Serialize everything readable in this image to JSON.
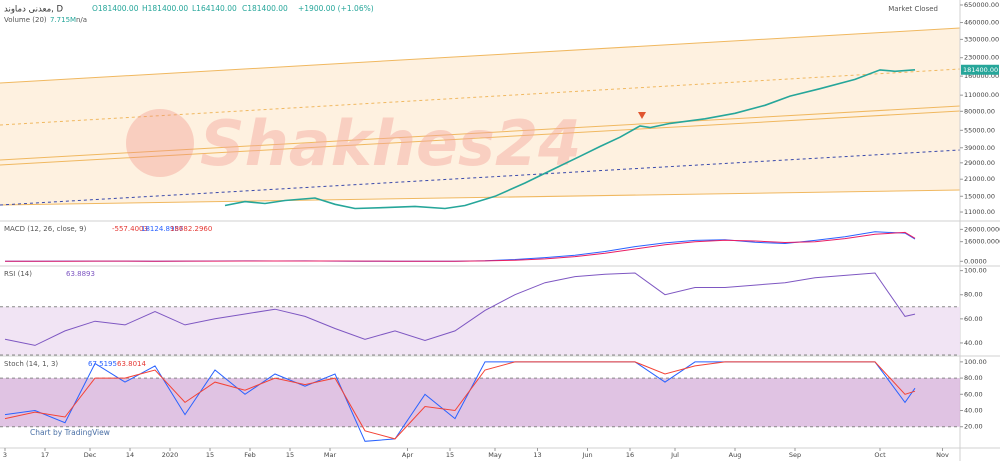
{
  "chart_data": [
    {
      "type": "line",
      "title": "معدنی دماوند, D",
      "legend_texts": [
        "O181400.00",
        "H181400.00",
        "L164140.00",
        "C181400.00",
        "+1900.00 (+1.06%)"
      ],
      "status": "Market Closed",
      "volume_title": "Volume (20)",
      "volume_texts": [
        "7.715M",
        "n/a"
      ],
      "watermark": "Shakhes24",
      "last_price": {
        "value": 181400,
        "label": "181400.00"
      },
      "log_scale": true,
      "ylim": [
        9400,
        717000
      ],
      "yticks": [
        {
          "value": 650000,
          "label": "650000.00"
        },
        {
          "value": 460000,
          "label": "460000.00"
        },
        {
          "value": 330000,
          "label": "330000.00"
        },
        {
          "value": 230000,
          "label": "230000.00"
        },
        {
          "value": 160000,
          "label": "160000.00"
        },
        {
          "value": 110000,
          "label": "110000.00"
        },
        {
          "value": 80000,
          "label": "80000.00"
        },
        {
          "value": 55000,
          "label": "55000.00"
        },
        {
          "value": 39000,
          "label": "39000.00"
        },
        {
          "value": 29000,
          "label": "29000.00"
        },
        {
          "value": 21000,
          "label": "21000.00"
        },
        {
          "value": 15000,
          "label": "15000.00"
        },
        {
          "value": 11000,
          "label": "11000.00"
        }
      ],
      "x": [
        88,
        96,
        104,
        112,
        124,
        132,
        140,
        152,
        164,
        176,
        184,
        196,
        208,
        220,
        230,
        238,
        246,
        254,
        258,
        266,
        280,
        292,
        304,
        314,
        326,
        340,
        350,
        356,
        364
      ],
      "series": [
        {
          "color": "#26a69a",
          "values": [
            12500,
            13500,
            13000,
            13800,
            14500,
            12800,
            11800,
            12000,
            12300,
            11800,
            12500,
            15000,
            19500,
            26000,
            33000,
            40000,
            48000,
            60000,
            58000,
            63000,
            69000,
            77000,
            90000,
            108000,
            125000,
            150000,
            181000,
            176000,
            181400
          ]
        }
      ]
    },
    {
      "type": "line",
      "title": "MACD (12, 26, close, 9)",
      "legend_texts": [
        "-557.4003",
        "18124.8957",
        "18682.2960"
      ],
      "ylim": [
        -3000,
        32000
      ],
      "yticks": [
        {
          "value": 26000,
          "label": "26000.0000"
        },
        {
          "value": 16000,
          "label": "16000.0000"
        },
        {
          "value": 0,
          "label": "0.0000"
        }
      ],
      "x": [
        0,
        12,
        24,
        36,
        48,
        60,
        72,
        84,
        96,
        108,
        120,
        132,
        144,
        156,
        168,
        180,
        192,
        204,
        216,
        228,
        240,
        252,
        264,
        276,
        288,
        300,
        312,
        324,
        336,
        348,
        360,
        364
      ],
      "series": [
        {
          "color": "#2962ff",
          "values": [
            0,
            100,
            150,
            200,
            150,
            100,
            200,
            250,
            300,
            250,
            300,
            200,
            100,
            50,
            0,
            100,
            500,
            1500,
            3000,
            5000,
            8000,
            12000,
            15000,
            17000,
            17500,
            15500,
            14500,
            17000,
            20000,
            24000,
            23000,
            18100
          ]
        },
        {
          "color": "#e91e63",
          "values": [
            0,
            50,
            100,
            150,
            150,
            120,
            150,
            200,
            250,
            250,
            280,
            230,
            150,
            80,
            30,
            50,
            300,
            900,
            2000,
            3800,
            6500,
            10000,
            13500,
            16000,
            17200,
            16500,
            15300,
            16000,
            18500,
            22000,
            23500,
            18700
          ]
        }
      ]
    },
    {
      "type": "line",
      "title": "RSI (14)",
      "legend_texts": [
        "63.8893"
      ],
      "band": [
        30,
        70
      ],
      "ylim": [
        30,
        103
      ],
      "yticks": [
        {
          "value": 100,
          "label": "100.00"
        },
        {
          "value": 80,
          "label": "80.00"
        },
        {
          "value": 60,
          "label": "60.00"
        },
        {
          "value": 40,
          "label": "40.00"
        }
      ],
      "x": [
        0,
        12,
        24,
        36,
        48,
        60,
        72,
        84,
        96,
        108,
        120,
        132,
        144,
        156,
        168,
        180,
        192,
        204,
        216,
        228,
        240,
        252,
        264,
        276,
        288,
        300,
        312,
        324,
        336,
        348,
        360,
        364
      ],
      "series": [
        {
          "color": "#7e57c2",
          "values": [
            43,
            38,
            50,
            58,
            55,
            66,
            55,
            60,
            64,
            68,
            62,
            52,
            43,
            50,
            42,
            50,
            67,
            80,
            90,
            95,
            97,
            98,
            80,
            86,
            86,
            88,
            90,
            94,
            96,
            98,
            62,
            63.8893
          ]
        }
      ]
    },
    {
      "type": "line",
      "title": "Stoch (14, 1, 3)",
      "legend_texts": [
        "67.5195",
        "63.8014"
      ],
      "band": [
        20,
        80
      ],
      "ylim": [
        -5,
        106
      ],
      "yticks": [
        {
          "value": 100,
          "label": "100.00"
        },
        {
          "value": 80,
          "label": "80.00"
        },
        {
          "value": 60,
          "label": "60.00"
        },
        {
          "value": 40,
          "label": "40.00"
        },
        {
          "value": 20,
          "label": "20.00"
        }
      ],
      "watermark": "Chart by TradingView",
      "xlim": [
        -2,
        382
      ],
      "xticks": [
        {
          "value": 0,
          "label": "3"
        },
        {
          "value": 16,
          "label": "17"
        },
        {
          "value": 34,
          "label": "Dec"
        },
        {
          "value": 50,
          "label": "14"
        },
        {
          "value": 66,
          "label": "2020"
        },
        {
          "value": 82,
          "label": "15"
        },
        {
          "value": 98,
          "label": "Feb"
        },
        {
          "value": 114,
          "label": "15"
        },
        {
          "value": 130,
          "label": "Mar"
        },
        {
          "value": 161,
          "label": "Apr"
        },
        {
          "value": 178,
          "label": "15"
        },
        {
          "value": 196,
          "label": "May"
        },
        {
          "value": 213,
          "label": "13"
        },
        {
          "value": 233,
          "label": "Jun"
        },
        {
          "value": 250,
          "label": "16"
        },
        {
          "value": 268,
          "label": "Jul"
        },
        {
          "value": 292,
          "label": "Aug"
        },
        {
          "value": 316,
          "label": "Sep"
        },
        {
          "value": 350,
          "label": "Oct"
        },
        {
          "value": 375,
          "label": "Nov"
        }
      ],
      "x": [
        0,
        12,
        24,
        36,
        48,
        60,
        72,
        84,
        96,
        108,
        120,
        132,
        144,
        156,
        168,
        180,
        192,
        204,
        216,
        228,
        240,
        252,
        264,
        276,
        288,
        300,
        312,
        324,
        336,
        348,
        360,
        364
      ],
      "series": [
        {
          "color": "#2962ff",
          "values": [
            35,
            40,
            25,
            98,
            75,
            95,
            35,
            90,
            60,
            85,
            70,
            85,
            2,
            5,
            60,
            30,
            100,
            100,
            100,
            100,
            100,
            100,
            75,
            100,
            100,
            100,
            100,
            100,
            100,
            100,
            50,
            67.5195
          ]
        },
        {
          "color": "#f44336",
          "values": [
            30,
            38,
            32,
            80,
            80,
            90,
            50,
            75,
            65,
            80,
            72,
            80,
            15,
            5,
            45,
            40,
            90,
            100,
            100,
            100,
            100,
            100,
            85,
            95,
            100,
            100,
            100,
            100,
            100,
            100,
            60,
            63.8014
          ]
        }
      ]
    }
  ]
}
